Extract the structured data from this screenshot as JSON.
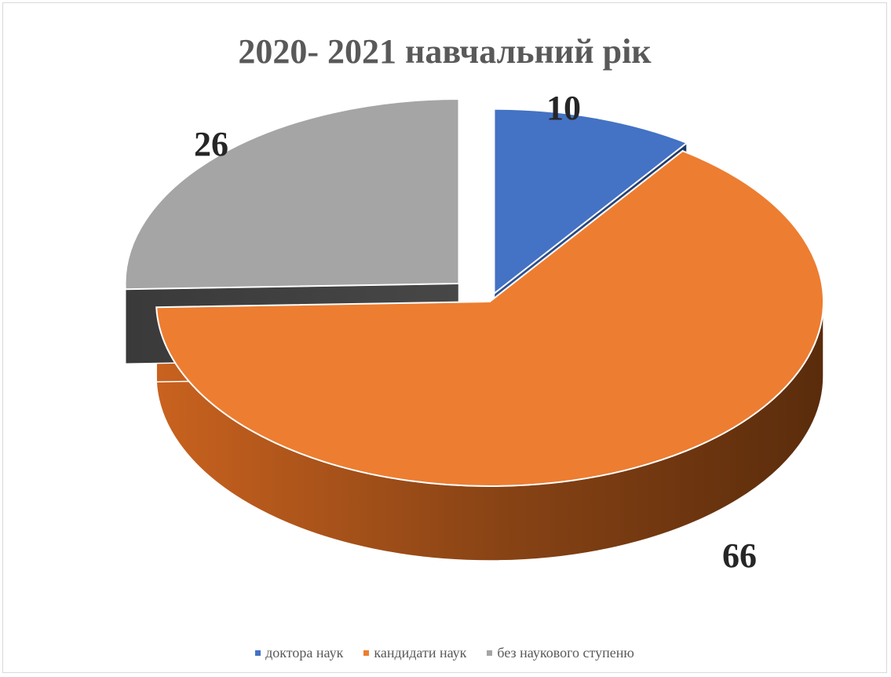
{
  "chart_data": {
    "type": "pie",
    "title": "2020- 2021 навчальний рік",
    "categories": [
      "доктора наук",
      "кандидати наук",
      "без наукового ступеню"
    ],
    "values": [
      10,
      66,
      26
    ],
    "data_labels": [
      "10",
      "66",
      "26"
    ],
    "colors": [
      "#4472c4",
      "#ed7d31",
      "#a5a5a5"
    ],
    "exploded": [
      true,
      false,
      true
    ],
    "style": "3d",
    "legend_position": "bottom"
  }
}
